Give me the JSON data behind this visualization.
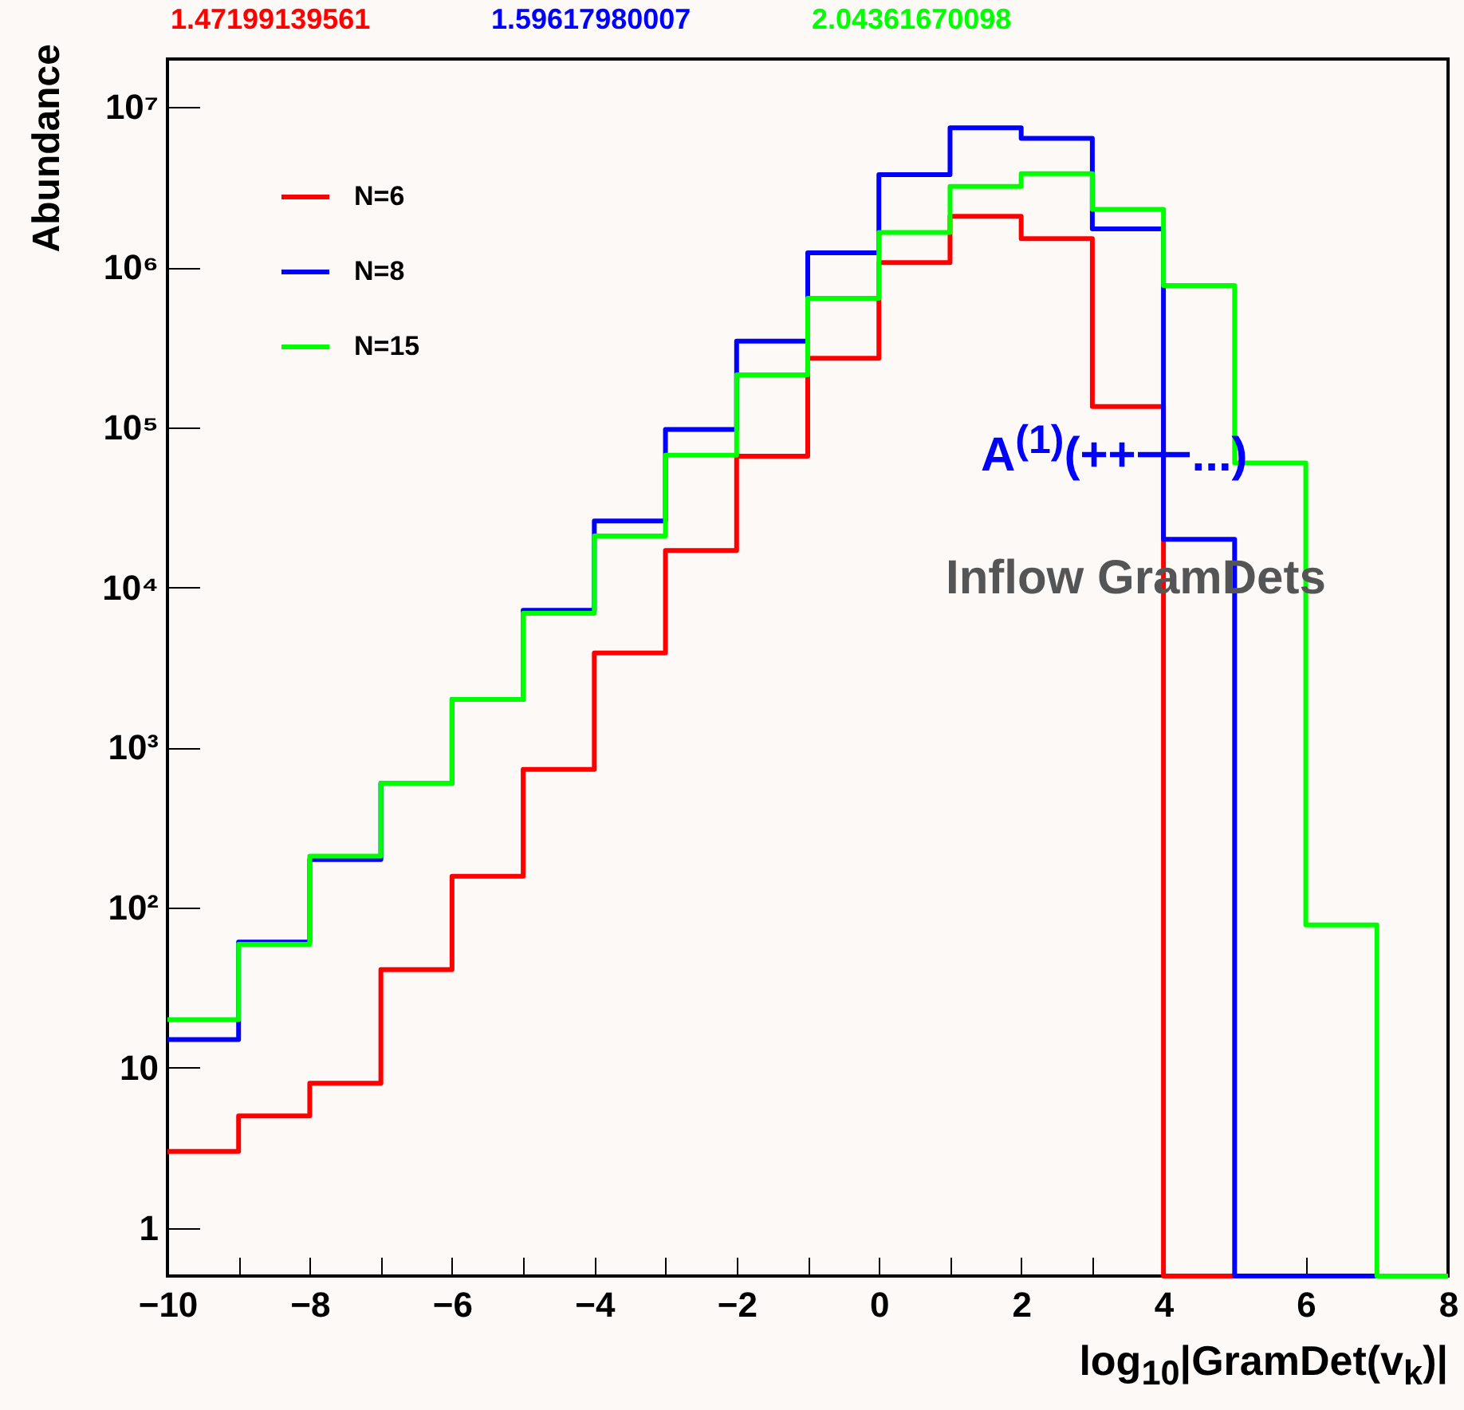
{
  "chart_data": {
    "type": "histogram",
    "xlabel": "log$_{10}$|GramDet(v$_{k}$)|",
    "ylabel": "Abundance",
    "bins": [
      -10,
      -9,
      -8,
      -7,
      -6,
      -5,
      -4,
      -3,
      -2,
      -1,
      0,
      1,
      2,
      3,
      4,
      5,
      6,
      7,
      8
    ],
    "series": [
      {
        "name": "N=6",
        "color": "#ff0000",
        "values": [
          3,
          5,
          8,
          41,
          157,
          730,
          3900,
          17000,
          66000,
          270000,
          1070000,
          2080000,
          1510000,
          135000,
          null,
          null,
          null,
          null
        ]
      },
      {
        "name": "N=8",
        "color": "#0000ff",
        "values": [
          15,
          61,
          200,
          600,
          2000,
          7200,
          26000,
          97000,
          346000,
          1230000,
          3790000,
          7430000,
          6380000,
          1740000,
          20000,
          null,
          null,
          null
        ]
      },
      {
        "name": "N=15",
        "color": "#00ff00",
        "values": [
          20,
          59,
          210,
          600,
          2000,
          6900,
          21000,
          67000,
          213000,
          640000,
          1650000,
          3200000,
          3850000,
          2300000,
          770000,
          60000,
          78,
          null
        ]
      }
    ],
    "log": true,
    "xlim": [
      -10,
      8
    ],
    "xticks": [
      -10,
      {
        "value": -9,
        "label": null
      },
      -8,
      {
        "value": -7,
        "label": null
      },
      -6,
      {
        "value": -5,
        "label": null
      },
      -4,
      {
        "value": -3,
        "label": null
      },
      -2,
      {
        "value": -1,
        "label": null
      },
      0,
      {
        "value": 1,
        "label": null
      },
      2,
      {
        "value": 3,
        "label": null
      },
      4,
      {
        "value": 5,
        "label": null
      },
      6,
      {
        "value": 7,
        "label": null
      },
      8
    ],
    "ylim": [
      0.5,
      20000000
    ],
    "yticks": [
      1,
      10,
      {
        "value": 100,
        "label": "10²"
      },
      {
        "value": 1000,
        "label": "10³"
      },
      {
        "value": 10000,
        "label": "10⁴"
      },
      {
        "value": 100000,
        "label": "10⁵"
      },
      {
        "value": 1000000,
        "label": "10⁶"
      },
      {
        "value": 10000000,
        "label": "10⁷"
      }
    ],
    "legend": "top left",
    "marker": "none",
    "line_style": "solid",
    "annotations": [
      "1.47199139561",
      "1.59617980007",
      "2.04361670098",
      "A$^{(1)}$(++−−...)",
      "Inflow GramDets"
    ]
  }
}
